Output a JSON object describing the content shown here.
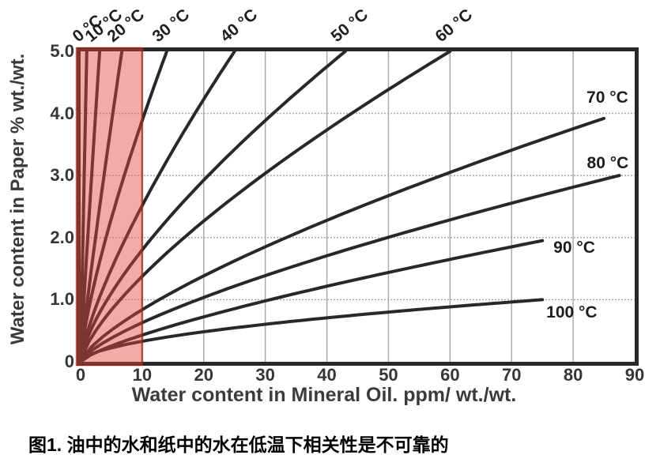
{
  "figure": {
    "caption": "图1. 油中的水和纸中的水在低温下相关性是不可靠的"
  },
  "chart_data": {
    "type": "line",
    "title": "",
    "xlabel": "Water content in Mineral Oil. ppm/ wt./wt.",
    "ylabel": "Water content in Paper % wt./wt.",
    "xlim": [
      0,
      90
    ],
    "ylim": [
      0,
      5
    ],
    "xticks": [
      0,
      10,
      20,
      30,
      40,
      50,
      60,
      70,
      80,
      90
    ],
    "yticks": [
      "5.0",
      "4.0",
      "3.0",
      "2.0",
      "1.0",
      "0"
    ],
    "grid": true,
    "legend_position": "curve-end-labels",
    "highlight_region": {
      "x_from": 0,
      "x_to": 10,
      "fill": "#e0463a",
      "fill_opacity": 0.45,
      "border": "#a2241b"
    },
    "series_note": "isotherm curves from origin; end=[ppm in oil, % in paper]; p = power-law bow exponent y=yend*(x/xend)^p",
    "series": [
      {
        "name": "0 °C",
        "end": [
          1.0,
          5.0
        ],
        "p": 0.95,
        "label": "top",
        "points": [
          [
            0,
            0
          ],
          [
            0.5,
            2.6
          ],
          [
            1.0,
            5.0
          ]
        ]
      },
      {
        "name": "10 °C",
        "end": [
          3.1,
          5.0
        ],
        "p": 0.93,
        "label": "top",
        "points": [
          [
            0,
            0
          ],
          [
            1.6,
            2.6
          ],
          [
            3.1,
            5.0
          ]
        ]
      },
      {
        "name": "20 °C",
        "end": [
          6.7,
          5.0
        ],
        "p": 0.9,
        "label": "top",
        "points": [
          [
            0,
            0
          ],
          [
            3.4,
            2.7
          ],
          [
            6.7,
            5.0
          ]
        ]
      },
      {
        "name": "30 °C",
        "end": [
          14.0,
          5.0
        ],
        "p": 0.75,
        "label": "top",
        "points": [
          [
            0,
            0
          ],
          [
            7.0,
            3.0
          ],
          [
            14.0,
            5.0
          ]
        ]
      },
      {
        "name": "40 °C",
        "end": [
          25.0,
          5.0
        ],
        "p": 0.75,
        "label": "top",
        "points": [
          [
            0,
            0
          ],
          [
            12.5,
            3.0
          ],
          [
            25.0,
            5.0
          ]
        ]
      },
      {
        "name": "50 °C",
        "end": [
          43.0,
          5.0
        ],
        "p": 0.7,
        "label": "top",
        "points": [
          [
            0,
            0
          ],
          [
            21.5,
            3.1
          ],
          [
            43.0,
            5.0
          ]
        ]
      },
      {
        "name": "60 °C",
        "end": [
          60.0,
          5.0
        ],
        "p": 0.72,
        "label": "top",
        "points": [
          [
            0,
            0
          ],
          [
            30.0,
            3.0
          ],
          [
            60.0,
            5.0
          ]
        ]
      },
      {
        "name": "70 °C",
        "end": [
          85.0,
          3.92
        ],
        "p": 0.72,
        "label": "right",
        "label_offset": [
          -22,
          -37
        ],
        "points": [
          [
            0,
            0
          ],
          [
            42.5,
            2.4
          ],
          [
            85.0,
            3.9
          ]
        ]
      },
      {
        "name": "80 °C",
        "end": [
          87.5,
          3.0
        ],
        "p": 0.72,
        "label": "right",
        "label_offset": [
          -41,
          -26
        ],
        "points": [
          [
            0,
            0
          ],
          [
            44.0,
            1.8
          ],
          [
            87.5,
            3.0
          ]
        ]
      },
      {
        "name": "90 °C",
        "end": [
          75.0,
          1.95
        ],
        "p": 0.75,
        "label": "right",
        "label_offset": [
          14,
          -2
        ],
        "points": [
          [
            0,
            0
          ],
          [
            37.5,
            1.2
          ],
          [
            75.0,
            2.0
          ]
        ]
      },
      {
        "name": "100 °C",
        "end": [
          75.0,
          1.0
        ],
        "p": 0.55,
        "label": "right",
        "label_offset": [
          5,
          6
        ],
        "points": [
          [
            0,
            0
          ],
          [
            37.5,
            0.7
          ],
          [
            75.0,
            1.0
          ]
        ]
      }
    ],
    "colors": {
      "curve": "#282828",
      "grid": "#a6a6a6",
      "border": "#282828",
      "tick_text": "#363636",
      "axis_title_text": "#3b3b3b",
      "temp_label_text": "#1e1e1e"
    }
  }
}
